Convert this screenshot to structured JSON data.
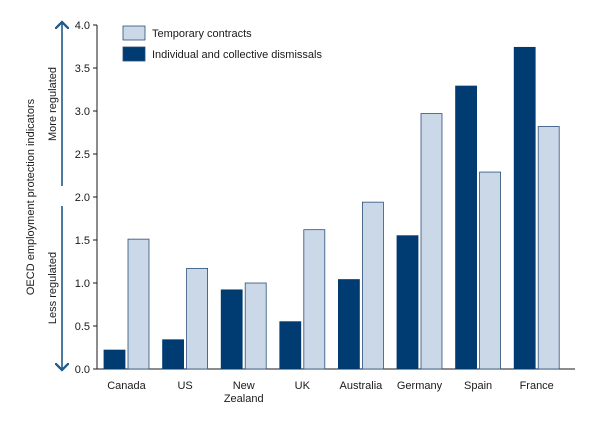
{
  "chart_data": {
    "type": "bar",
    "ylabel": "OECD employment protection indicators",
    "ylim": [
      0,
      4.0
    ],
    "y_ticks": [
      "0.0",
      "0.5",
      "1.0",
      "1.5",
      "2.0",
      "2.5",
      "3.0",
      "3.5",
      "4.0"
    ],
    "categories": [
      "Canada",
      "US",
      "New Zealand",
      "UK",
      "Australia",
      "Germany",
      "Spain",
      "France"
    ],
    "category_lines": [
      [
        "Canada"
      ],
      [
        "US"
      ],
      [
        "New",
        "Zealand"
      ],
      [
        "UK"
      ],
      [
        "Australia"
      ],
      [
        "Germany"
      ],
      [
        "Spain"
      ],
      [
        "France"
      ]
    ],
    "series": [
      {
        "name": "Individual and collective dismissals",
        "color": "#003b71",
        "values": [
          0.22,
          0.34,
          0.92,
          0.55,
          1.04,
          1.55,
          3.29,
          3.74
        ]
      },
      {
        "name": "Temporary contracts",
        "color": "#cbd8e7",
        "values": [
          1.51,
          1.17,
          1.0,
          1.62,
          1.94,
          2.97,
          2.29,
          2.82
        ]
      }
    ],
    "legend": {
      "placement": "top-left",
      "order": [
        "Temporary contracts",
        "Individual and collective dismissals"
      ]
    },
    "annotations": {
      "upper": "More regulated",
      "lower": "Less regulated"
    },
    "grid": false
  }
}
